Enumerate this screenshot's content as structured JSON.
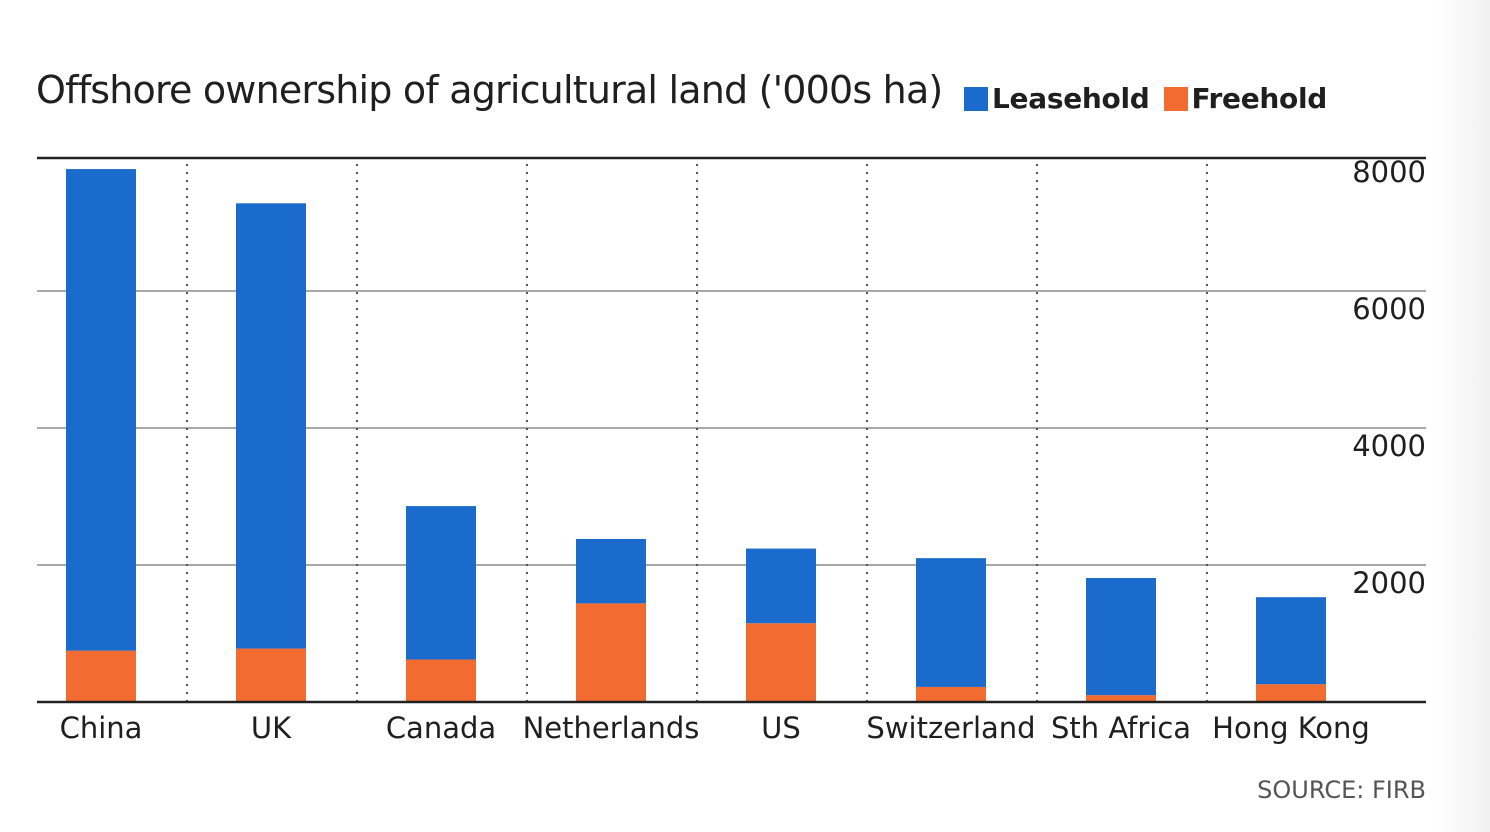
{
  "chart_data": {
    "type": "bar",
    "stacked": true,
    "title": "Offshore ownership of agricultural land ('000s ha)",
    "categories": [
      "China",
      "UK",
      "Canada",
      "Netherlands",
      "US",
      "Switzerland",
      "Sth Africa",
      "Hong Kong"
    ],
    "series": [
      {
        "name": "Freehold",
        "color": "#f26b30",
        "values": [
          750,
          780,
          620,
          1440,
          1150,
          220,
          100,
          260
        ]
      },
      {
        "name": "Leasehold",
        "color": "#1a6bcc",
        "values": [
          7030,
          6500,
          2240,
          940,
          1090,
          1880,
          1710,
          1270
        ]
      }
    ],
    "yticks": [
      2000,
      4000,
      6000,
      8000
    ],
    "ylim": [
      0,
      8000
    ],
    "legend_position": "top-right",
    "grid": true,
    "source": "SOURCE: FIRB"
  },
  "legend": [
    {
      "label": "Leasehold",
      "color": "#1a6bcc"
    },
    {
      "label": "Freehold",
      "color": "#f26b30"
    }
  ]
}
